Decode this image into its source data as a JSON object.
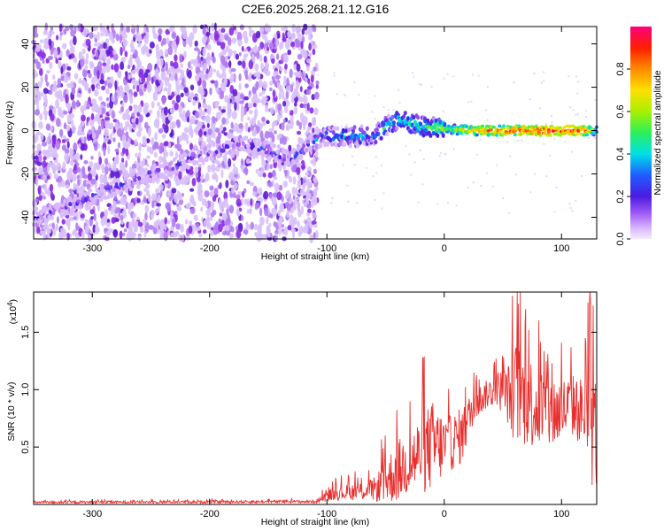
{
  "title": "C2E6.2025.268.21.12.G16",
  "colors": {
    "snr_line": "#e8302f",
    "noise": "#8a2be2",
    "background": "#ffffff"
  },
  "chart_data": [
    {
      "type": "heatmap",
      "name": "spectrogram",
      "xlabel": "Height of straight line (km)",
      "ylabel": "Frequency (Hz)",
      "xlim": [
        -350,
        130
      ],
      "ylim": [
        -50,
        48
      ],
      "x_ticks": [
        -300,
        -200,
        -100,
        0,
        100
      ],
      "y_ticks": [
        -40,
        -20,
        0,
        20,
        40
      ],
      "x_tick_labels": [
        "-300",
        "-200",
        "-100",
        "0",
        "100"
      ],
      "y_tick_labels": [
        "-40",
        "-20",
        "0",
        "20",
        "40"
      ],
      "noise_region_x": [
        -350,
        -108
      ],
      "signal_track": {
        "x": [
          -350,
          -320,
          -290,
          -260,
          -230,
          -200,
          -170,
          -150,
          -130,
          -115,
          -100,
          -80,
          -60,
          -40,
          -20,
          0,
          20,
          40,
          60,
          80,
          100,
          120,
          130
        ],
        "y": [
          -40,
          -35,
          -28,
          -22,
          -16,
          -10,
          -6,
          -9,
          -13,
          -6,
          -2,
          -3,
          -2,
          5,
          2,
          1,
          0,
          0,
          0,
          0,
          0,
          0,
          0
        ],
        "amplitude": [
          0.15,
          0.15,
          0.18,
          0.18,
          0.2,
          0.2,
          0.2,
          0.2,
          0.2,
          0.25,
          0.3,
          0.35,
          0.35,
          0.4,
          0.45,
          0.55,
          0.7,
          0.8,
          0.85,
          0.9,
          0.9,
          0.85,
          0.5
        ]
      },
      "colorbar": {
        "label": "Normalized spectral amplitude",
        "range": [
          0,
          1
        ],
        "ticks": [
          0.0,
          0.2,
          0.4,
          0.6,
          0.8
        ],
        "tick_labels": [
          "0.0",
          "0.2",
          "0.4",
          "0.6",
          "0.8"
        ]
      }
    },
    {
      "type": "line",
      "name": "snr",
      "xlabel": "Height of straight line (km)",
      "ylabel": "SNR (10 * v/v)",
      "y_scale_label": "(x10",
      "y_scale_exponent": "4",
      "y_scale_suffix": ")",
      "xlim": [
        -350,
        130
      ],
      "ylim": [
        0,
        18500
      ],
      "x_ticks": [
        -300,
        -200,
        -100,
        0,
        100
      ],
      "y_ticks": [
        5000,
        10000,
        15000
      ],
      "x_tick_labels": [
        "-300",
        "-200",
        "-100",
        "0",
        "100"
      ],
      "y_tick_labels": [
        "0.5",
        "1.0",
        "1.5"
      ],
      "envelope": {
        "x": [
          -350,
          -110,
          -95,
          -80,
          -60,
          -50,
          -40,
          -30,
          -20,
          -10,
          0,
          5,
          15,
          25,
          35,
          45,
          55,
          60,
          70,
          80,
          90,
          100,
          110,
          120,
          125,
          130
        ],
        "base": [
          150,
          200,
          700,
          800,
          900,
          1200,
          1800,
          2500,
          3000,
          3500,
          4000,
          4300,
          5000,
          8000,
          9000,
          9500,
          8500,
          8000,
          7500,
          7000,
          6500,
          7000,
          7500,
          6500,
          5000,
          4000
        ],
        "spread": [
          200,
          250,
          1200,
          1400,
          2000,
          4000,
          5500,
          5500,
          7000,
          8000,
          5500,
          5000,
          5000,
          3000,
          2500,
          3000,
          5500,
          9000,
          8500,
          7500,
          7000,
          6000,
          5500,
          6500,
          12000,
          10000
        ]
      }
    }
  ]
}
